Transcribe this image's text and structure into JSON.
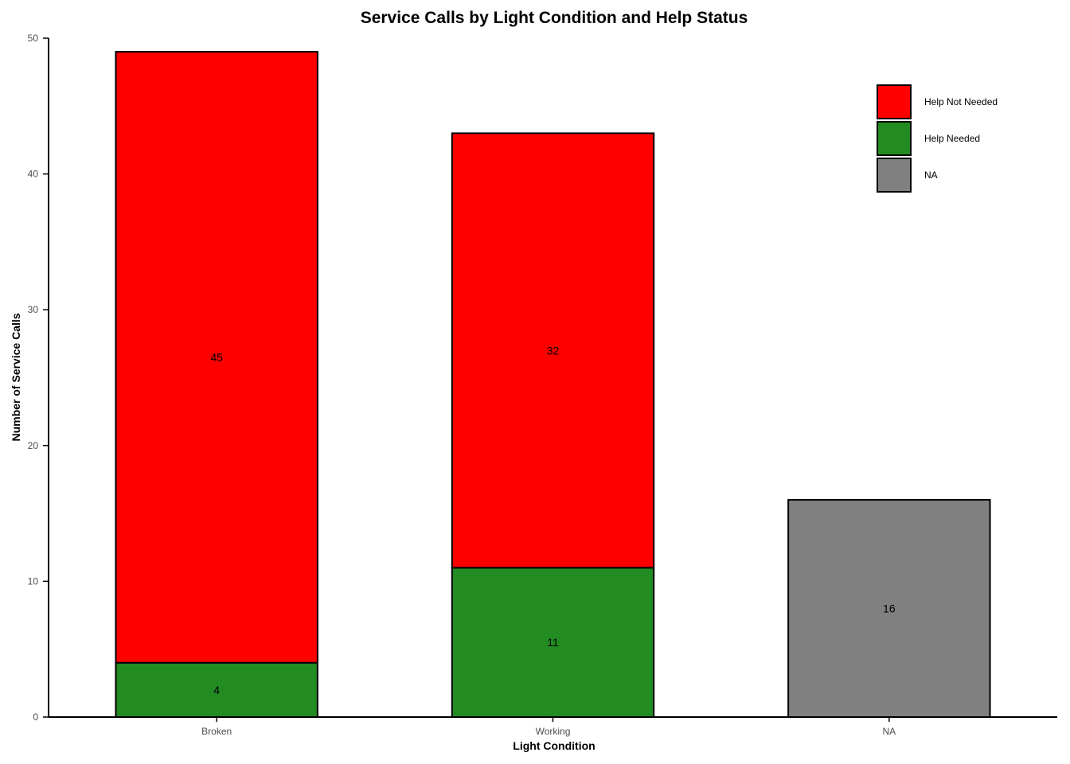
{
  "chart_data": {
    "type": "bar",
    "stacked": true,
    "title": "Service Calls by Light Condition and Help Status",
    "xlabel": "Light Condition",
    "ylabel": "Number of Service Calls",
    "categories": [
      "Broken",
      "Working",
      "NA"
    ],
    "ylim": [
      0,
      50
    ],
    "yticks": [
      "0",
      "10",
      "20",
      "30",
      "40",
      "50"
    ],
    "series": [
      {
        "name": "Help Needed",
        "color": "#228B22",
        "values": [
          4,
          11,
          null
        ]
      },
      {
        "name": "Help Not Needed",
        "color": "#FF0000",
        "values": [
          45,
          32,
          null
        ]
      },
      {
        "name": "NA",
        "color": "#808080",
        "values": [
          null,
          null,
          16
        ]
      }
    ],
    "legend": {
      "position": "top-right",
      "order": [
        "Help Not Needed",
        "Help Needed",
        "NA"
      ]
    },
    "grid": false
  }
}
